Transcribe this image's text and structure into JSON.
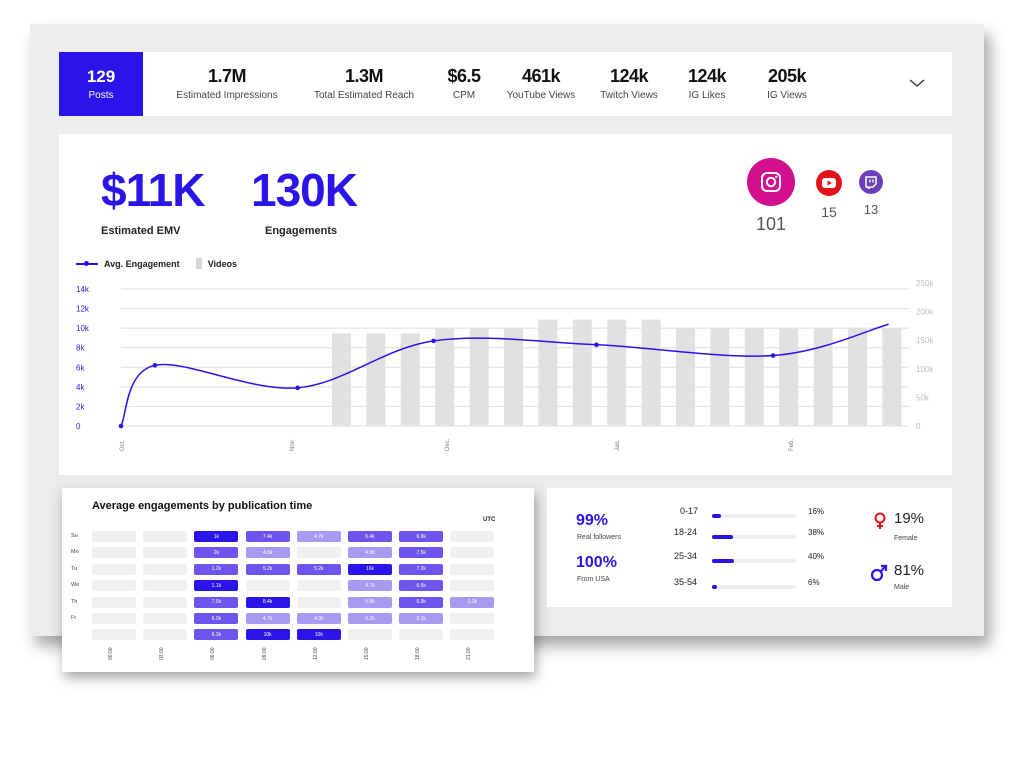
{
  "stats_bar": {
    "posts": {
      "value": "129",
      "label": "Posts"
    },
    "items": [
      {
        "value": "1.7M",
        "label": "Estimated Impressions"
      },
      {
        "value": "1.3M",
        "label": "Total Estimated Reach"
      },
      {
        "value": "$6.5",
        "label": "CPM"
      },
      {
        "value": "461k",
        "label": "YouTube Views"
      },
      {
        "value": "124k",
        "label": "Twitch Views"
      },
      {
        "value": "124k",
        "label": "IG Likes"
      },
      {
        "value": "205k",
        "label": "IG Views"
      }
    ],
    "expand_icon": "chevron-down-icon"
  },
  "kpis": {
    "emv": {
      "value": "$11K",
      "label": "Estimated EMV"
    },
    "engagements": {
      "value": "130K",
      "label": "Engagements"
    }
  },
  "social": [
    {
      "platform": "instagram",
      "icon": "instagram-icon",
      "count": "101",
      "color": "#d10f8f"
    },
    {
      "platform": "youtube",
      "icon": "youtube-icon",
      "count": "15",
      "color": "#e3131b"
    },
    {
      "platform": "twitch",
      "icon": "twitch-icon",
      "count": "13",
      "color": "#6b3fb8"
    }
  ],
  "chart_legend": {
    "line": "Avg. Engagement",
    "bars": "Videos"
  },
  "chart_data": {
    "type": "bar+line",
    "left_axis": {
      "ticks": [
        "0",
        "2k",
        "4k",
        "6k",
        "8k",
        "10k",
        "12k",
        "14k"
      ],
      "range": [
        0,
        14000
      ]
    },
    "right_axis": {
      "ticks": [
        "0",
        "50k",
        "100k",
        "150k",
        "200k",
        "250k"
      ],
      "range": [
        0,
        250000
      ]
    },
    "x_ticks": [
      "Oct.",
      "Nov.",
      "Dec.",
      "Jan.",
      "Feb."
    ],
    "series": [
      {
        "name": "Avg. Engagement",
        "kind": "line",
        "axis": "left",
        "points": [
          [
            0,
            0
          ],
          [
            0.5,
            6200
          ],
          [
            2.6,
            3900
          ],
          [
            4.6,
            8700
          ],
          [
            7.0,
            8300
          ],
          [
            9.6,
            7200
          ],
          [
            11.3,
            10400
          ]
        ]
      },
      {
        "name": "Videos",
        "kind": "bar",
        "axis": "right",
        "values": [
          162000,
          162000,
          162000,
          172000,
          172000,
          172000,
          186000,
          186000,
          186000,
          186000,
          172000,
          172000,
          172000,
          172000,
          172000,
          172000,
          172000
        ]
      }
    ],
    "grid": true,
    "colors": {
      "line": "#2a14e8",
      "bar": "#e1e1e1"
    }
  },
  "heatmap": {
    "title": "Average engagements by publication time",
    "timezone": "UTC",
    "days": [
      "Su",
      "Mo",
      "Tu",
      "We",
      "Th",
      "Fr",
      ""
    ],
    "times": [
      "00:00",
      "03:00",
      "06:00",
      "09:00",
      "12:00",
      "15:00",
      "18:00",
      "21:00"
    ],
    "rows": [
      [
        "",
        "",
        "1k",
        "7.4k",
        "4.7k",
        "6.4k",
        "6.9k",
        ""
      ],
      [
        "",
        "",
        "2k",
        "4.0k",
        "",
        "4.3k",
        "7.5k",
        ""
      ],
      [
        "",
        "",
        "1.2k",
        "5.2k",
        "5.2k",
        "16k",
        "7.2k",
        ""
      ],
      [
        "",
        "",
        "1.1k",
        "",
        "",
        "4.7k",
        "6.5k",
        ""
      ],
      [
        "",
        "",
        "7.5k",
        "8.4k",
        "",
        "5.8k",
        "6.9k",
        "3.3k"
      ],
      [
        "",
        "",
        "6.0k",
        "4.7k",
        "4.0k",
        "5.2k",
        "5.1k",
        ""
      ],
      [
        "",
        "",
        "6.3k",
        "10k",
        "10k",
        "",
        "",
        ""
      ]
    ],
    "levels": [
      [
        0,
        0,
        3,
        2,
        1,
        2,
        2,
        0
      ],
      [
        0,
        0,
        2,
        1,
        0,
        1,
        2,
        0
      ],
      [
        0,
        0,
        2,
        2,
        2,
        3,
        2,
        0
      ],
      [
        0,
        0,
        3,
        0,
        0,
        1,
        2,
        0
      ],
      [
        0,
        0,
        2,
        3,
        0,
        1,
        2,
        1
      ],
      [
        0,
        0,
        2,
        1,
        1,
        1,
        1,
        0
      ],
      [
        0,
        0,
        2,
        3,
        3,
        0,
        0,
        0
      ]
    ]
  },
  "audience": {
    "real_followers": {
      "value": "99%",
      "label": "Real followers"
    },
    "from_usa": {
      "value": "100%",
      "label": "From USA"
    },
    "age_groups": [
      {
        "range": "0-17",
        "pct": "16%",
        "fill": 0.16
      },
      {
        "range": "18-24",
        "pct": "38%",
        "fill": 0.38
      },
      {
        "range": "25-34",
        "pct": "40%",
        "fill": 0.4
      },
      {
        "range": "35-54",
        "pct": "6%",
        "fill": 0.06
      }
    ],
    "female": {
      "value": "19%",
      "label": "Female",
      "icon": "female-symbol-icon"
    },
    "male": {
      "value": "81%",
      "label": "Male",
      "icon": "male-symbol-icon"
    }
  }
}
